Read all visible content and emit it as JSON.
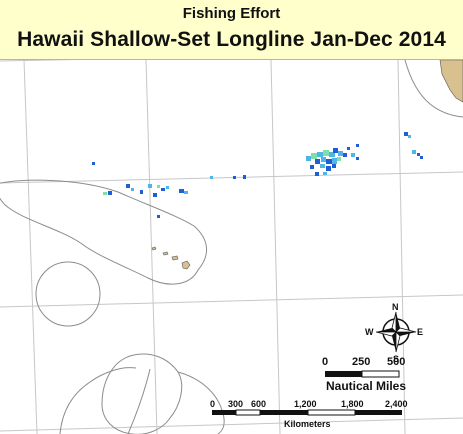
{
  "title": {
    "subtitle": "Fishing Effort",
    "main": "Hawaii Shallow-Set Longline Jan-Dec 2014"
  },
  "map": {
    "colors": {
      "title_background": "#ffffcc",
      "ocean": "#ffffff",
      "graticule": "#c7c7c7",
      "eez_boundary": "#8c8c8c",
      "land": "#d8c08f",
      "effort_low": "#1f5fd6",
      "effort_mid": "#4fb4e6",
      "effort_high": "#7ee0a8"
    },
    "compass": {
      "north": "N",
      "south": "S",
      "east": "E",
      "west": "W"
    },
    "scale_nautical": {
      "ticks": [
        "0",
        "250",
        "500"
      ],
      "units": "Nautical Miles"
    },
    "scale_km": {
      "ticks": [
        "0",
        "300",
        "600",
        "1,200",
        "1,800",
        "2,400"
      ],
      "units": "Kilometers"
    }
  }
}
